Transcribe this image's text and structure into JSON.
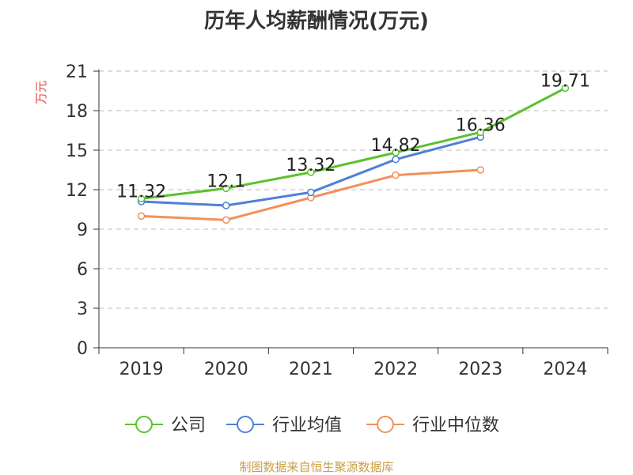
{
  "title": "历年人均薪酬情况(万元)",
  "footer": "制图数据来自恒生聚源数据库",
  "chart_data": {
    "type": "line",
    "title": "历年人均薪酬情况(万元)",
    "ylabel": "万元",
    "xlabel": "",
    "categories": [
      "2019",
      "2020",
      "2021",
      "2022",
      "2023",
      "2024"
    ],
    "ylim": [
      0,
      21
    ],
    "yticks": [
      0,
      3,
      6,
      9,
      12,
      15,
      18,
      21
    ],
    "grid": true,
    "legend_position": "bottom",
    "series": [
      {
        "name": "公司",
        "color": "#5cc12e",
        "values": [
          11.32,
          12.1,
          13.32,
          14.82,
          16.36,
          19.71
        ],
        "labels": [
          "11.32",
          "12.1",
          "13.32",
          "14.82",
          "16.36",
          "19.71"
        ]
      },
      {
        "name": "行业均值",
        "color": "#4f80d6",
        "values": [
          11.1,
          10.8,
          11.8,
          14.3,
          16.0,
          null
        ]
      },
      {
        "name": "行业中位数",
        "color": "#f3905a",
        "values": [
          10.0,
          9.7,
          11.4,
          13.1,
          13.5,
          null
        ]
      }
    ]
  }
}
